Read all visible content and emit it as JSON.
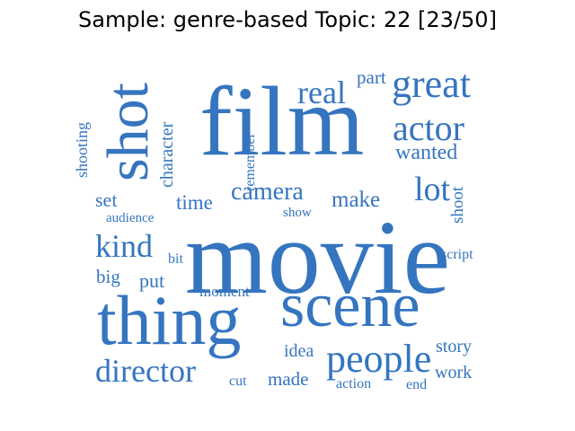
{
  "title": "Sample: genre-based Topic: 22 [23/50]",
  "colors": {
    "word_color": "#3575c0",
    "background": "#ffffff"
  },
  "words": [
    "movie",
    "film",
    "scene",
    "thing",
    "shot",
    "people",
    "director",
    "great",
    "actor",
    "lot",
    "kind",
    "camera",
    "real",
    "wanted",
    "make",
    "time",
    "character",
    "shooting",
    "set",
    "shoot",
    "part",
    "remember",
    "audience",
    "show",
    "script",
    "bit",
    "big",
    "put",
    "moment",
    "idea",
    "story",
    "made",
    "work",
    "cut",
    "action",
    "end"
  ]
}
